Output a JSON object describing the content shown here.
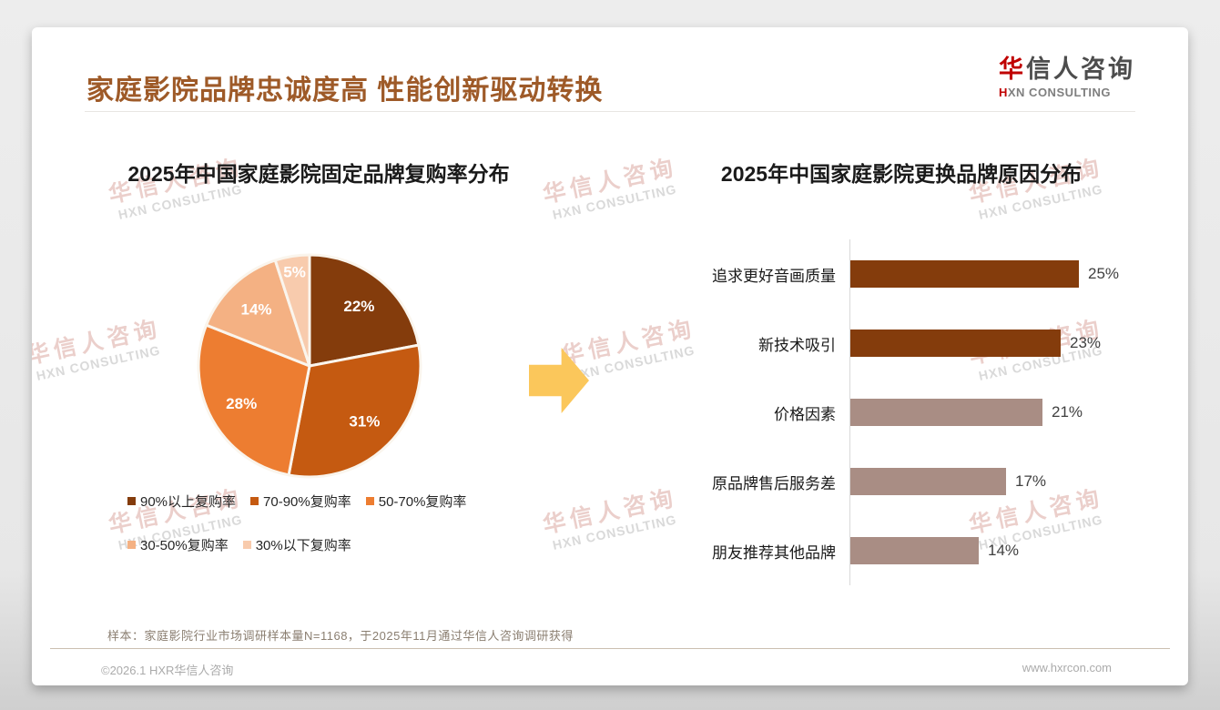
{
  "page": {
    "title": "家庭影院品牌忠诚度高 性能创新驱动转换",
    "logo": {
      "zh_first": "华",
      "zh_rest": "信人咨询",
      "en_first": "H",
      "en_rest": "XN CONSULTING"
    },
    "watermark": {
      "zh": "华信人咨询",
      "en": "HXN CONSULTING"
    },
    "footnote": "样本：家庭影院行业市场调研样本量N=1168，于2025年11月通过华信人咨询调研获得",
    "copyright": "©2026.1 HXR华信人咨询",
    "website": "www.hxrcon.com"
  },
  "colors": {
    "page_title": "#9e5a28",
    "logo_red": "#c00000",
    "arrow": "#fbc75b",
    "pie_stroke": "#faf5ed"
  },
  "chart_data": [
    {
      "type": "pie",
      "title": "2025年中国家庭影院固定品牌复购率分布",
      "labels": [
        "90%以上复购率",
        "70-90%复购率",
        "50-70%复购率",
        "30-50%复购率",
        "30%以下复购率"
      ],
      "values": [
        22,
        31,
        28,
        14,
        5
      ],
      "data_labels": [
        "22%",
        "31%",
        "28%",
        "14%",
        "5%"
      ],
      "colors": [
        "#843C0C",
        "#C55A11",
        "#ED7D31",
        "#F4B183",
        "#F8CBAD"
      ],
      "start_angle_deg": 0,
      "direction": "clockwise",
      "legend_position": "bottom"
    },
    {
      "type": "bar",
      "orientation": "horizontal",
      "title": "2025年中国家庭影院更换品牌原因分布",
      "categories": [
        "追求更好音画质量",
        "新技术吸引",
        "价格因素",
        "原品牌售后服务差",
        "朋友推荐其他品牌"
      ],
      "values": [
        25,
        23,
        21,
        17,
        14
      ],
      "value_labels": [
        "25%",
        "23%",
        "21%",
        "17%",
        "14%"
      ],
      "colors": [
        "#843C0C",
        "#843C0C",
        "#A98D84",
        "#A98D84",
        "#A98D84"
      ],
      "xlim": [
        0,
        25
      ],
      "grid": false,
      "legend": false
    }
  ]
}
